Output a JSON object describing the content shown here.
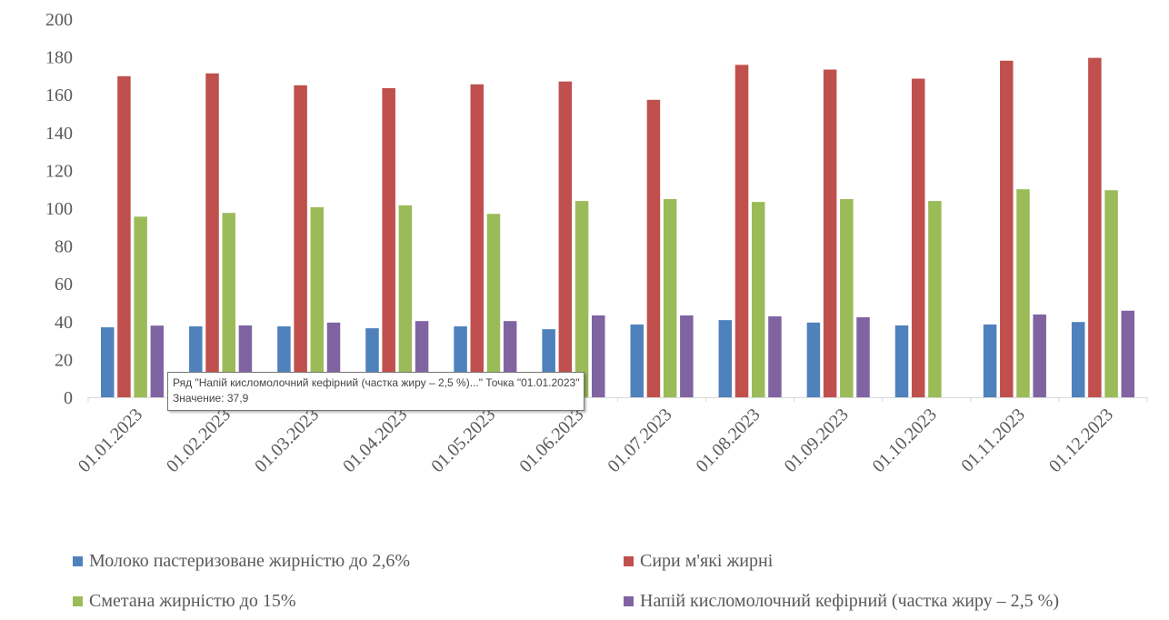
{
  "chart_data": {
    "type": "bar",
    "title": "",
    "xlabel": "",
    "ylabel": "",
    "ylim": [
      0,
      200
    ],
    "yticks": [
      0,
      20,
      40,
      60,
      80,
      100,
      120,
      140,
      160,
      180,
      200
    ],
    "grid": false,
    "legend_placement": "bottom",
    "categories": [
      "01.01.2023",
      "01.02.2023",
      "01.03.2023",
      "01.04.2023",
      "01.05.2023",
      "01.06.2023",
      "01.07.2023",
      "01.08.2023",
      "01.09.2023",
      "01.10.2023",
      "01.11.2023",
      "01.12.2023"
    ],
    "series": [
      {
        "name": "Молоко пастеризоване жирністю до 2,6%",
        "color": "#4f81bd",
        "values": [
          37.0,
          37.5,
          37.5,
          36.5,
          37.5,
          36.0,
          38.5,
          40.8,
          39.5,
          38.0,
          38.5,
          39.8
        ]
      },
      {
        "name": "Сири м'які жирні",
        "color": "#c0504d",
        "values": [
          169.8,
          171.3,
          165.0,
          163.5,
          165.5,
          167.0,
          157.3,
          175.8,
          173.3,
          168.5,
          178.0,
          179.5
        ]
      },
      {
        "name": "Сметана жирністю до 15%",
        "color": "#9bbb59",
        "values": [
          95.5,
          97.5,
          100.5,
          101.5,
          97.0,
          103.8,
          104.8,
          103.3,
          104.8,
          103.8,
          110.0,
          109.5
        ]
      },
      {
        "name": "Напій кисломолочний кефірний (частка жиру – 2,5 %)",
        "color": "#8064a2",
        "values": [
          37.9,
          38.0,
          39.5,
          40.3,
          40.3,
          43.3,
          43.3,
          42.8,
          42.3,
          null,
          43.8,
          45.8
        ]
      }
    ]
  },
  "tooltip": {
    "line1": "Ряд \"Напій кисломолочний кефірний (частка жиру – 2,5 %)...\" Точка \"01.01.2023\"",
    "line2": "Значение: 37,9"
  },
  "colors": {
    "axis": "#d9d9d9",
    "text": "#595959"
  }
}
